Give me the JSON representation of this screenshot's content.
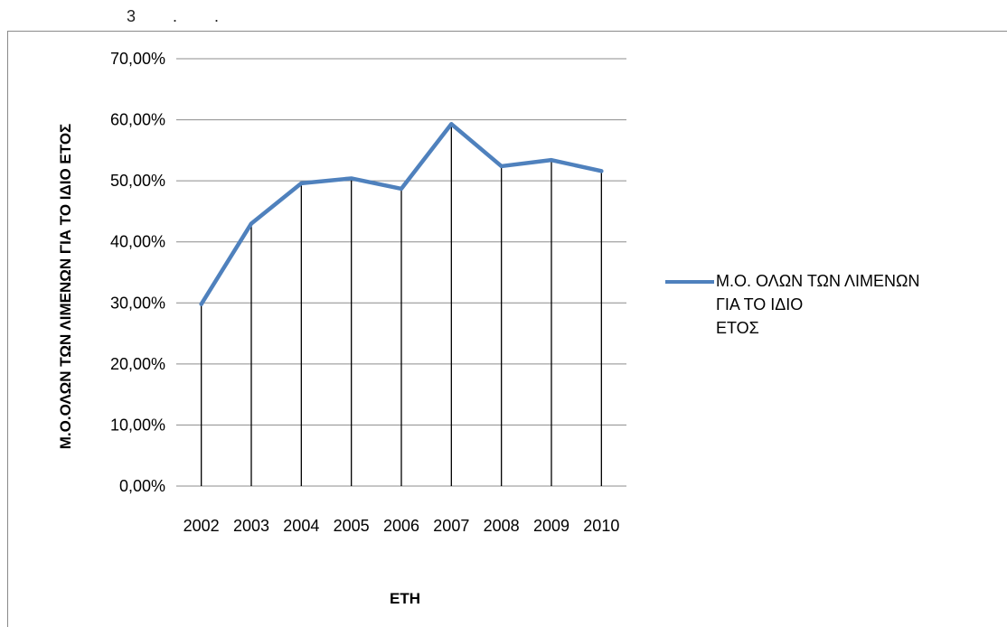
{
  "header": {
    "text": "3 . ."
  },
  "chart_data": {
    "type": "line",
    "title": "",
    "categories": [
      "2002",
      "2003",
      "2004",
      "2005",
      "2006",
      "2007",
      "2008",
      "2009",
      "2010"
    ],
    "series": [
      {
        "name": "Μ.Ο. ΟΛΩΝ ΤΩΝ ΛΙΜΕΝΩΝ ΓΙΑ ΤΟ ΙΔΙΟ ΕΤΟΣ",
        "values": [
          29.8,
          43.0,
          49.6,
          50.4,
          48.7,
          59.3,
          52.4,
          53.4,
          51.6
        ],
        "color": "#4f81bd"
      }
    ],
    "ylim": [
      0,
      70
    ],
    "yticks": [
      "0,00%",
      "10,00%",
      "20,00%",
      "30,00%",
      "40,00%",
      "50,00%",
      "60,00%",
      "70,00%"
    ],
    "xlabel": "ΕΤΗ",
    "ylabel": "Μ.Ο.ΟΛΩΝ ΤΩΝ ΛΙΜΕΝΩΝ ΓΙΑ ΤΟ ΙΔΙΟ ΕΤΟΣ",
    "grid": true,
    "drop_lines": true,
    "legend_position": "right",
    "legend_lines": [
      "Μ.Ο. ΟΛΩΝ ΤΩΝ ΛΙΜΕΝΩΝ",
      "ΓΙΑ ΤΟ ΙΔΙΟ",
      "ΕΤΟΣ"
    ]
  }
}
